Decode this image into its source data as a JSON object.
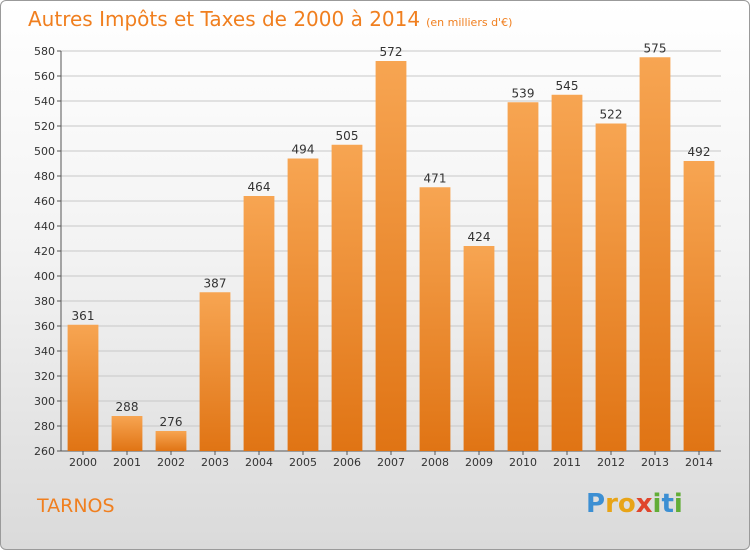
{
  "chart_data": {
    "type": "bar",
    "title": "Autres Impôts et Taxes de 2000 à 2014",
    "subtitle": "(en milliers d'€)",
    "xlabel": "",
    "ylabel": "",
    "categories": [
      "2000",
      "2001",
      "2002",
      "2003",
      "2004",
      "2005",
      "2006",
      "2007",
      "2008",
      "2009",
      "2010",
      "2011",
      "2012",
      "2013",
      "2014"
    ],
    "values": [
      361,
      288,
      276,
      387,
      464,
      494,
      505,
      572,
      471,
      424,
      539,
      545,
      522,
      575,
      492
    ],
    "data_labels": [
      "361",
      "288",
      "276",
      "387",
      "464",
      "494",
      "505",
      "572",
      "471",
      "424",
      "539",
      "545",
      "522",
      "575",
      "492"
    ],
    "ylim": [
      260,
      580
    ],
    "yticks": [
      260,
      280,
      300,
      320,
      340,
      360,
      380,
      400,
      420,
      440,
      460,
      480,
      500,
      520,
      540,
      560,
      580
    ],
    "grid": true,
    "bar_color": "#f39a3c"
  },
  "footer": {
    "city": "TARNOS",
    "logo_letters": [
      {
        "ch": "P",
        "color": "#3c8fd3"
      },
      {
        "ch": "r",
        "color": "#e8a417"
      },
      {
        "ch": "o",
        "color": "#e8a417"
      },
      {
        "ch": "x",
        "color": "#e0452c"
      },
      {
        "ch": "i",
        "color": "#62ad37"
      },
      {
        "ch": "t",
        "color": "#3c8fd3"
      },
      {
        "ch": "i",
        "color": "#62ad37"
      }
    ]
  }
}
